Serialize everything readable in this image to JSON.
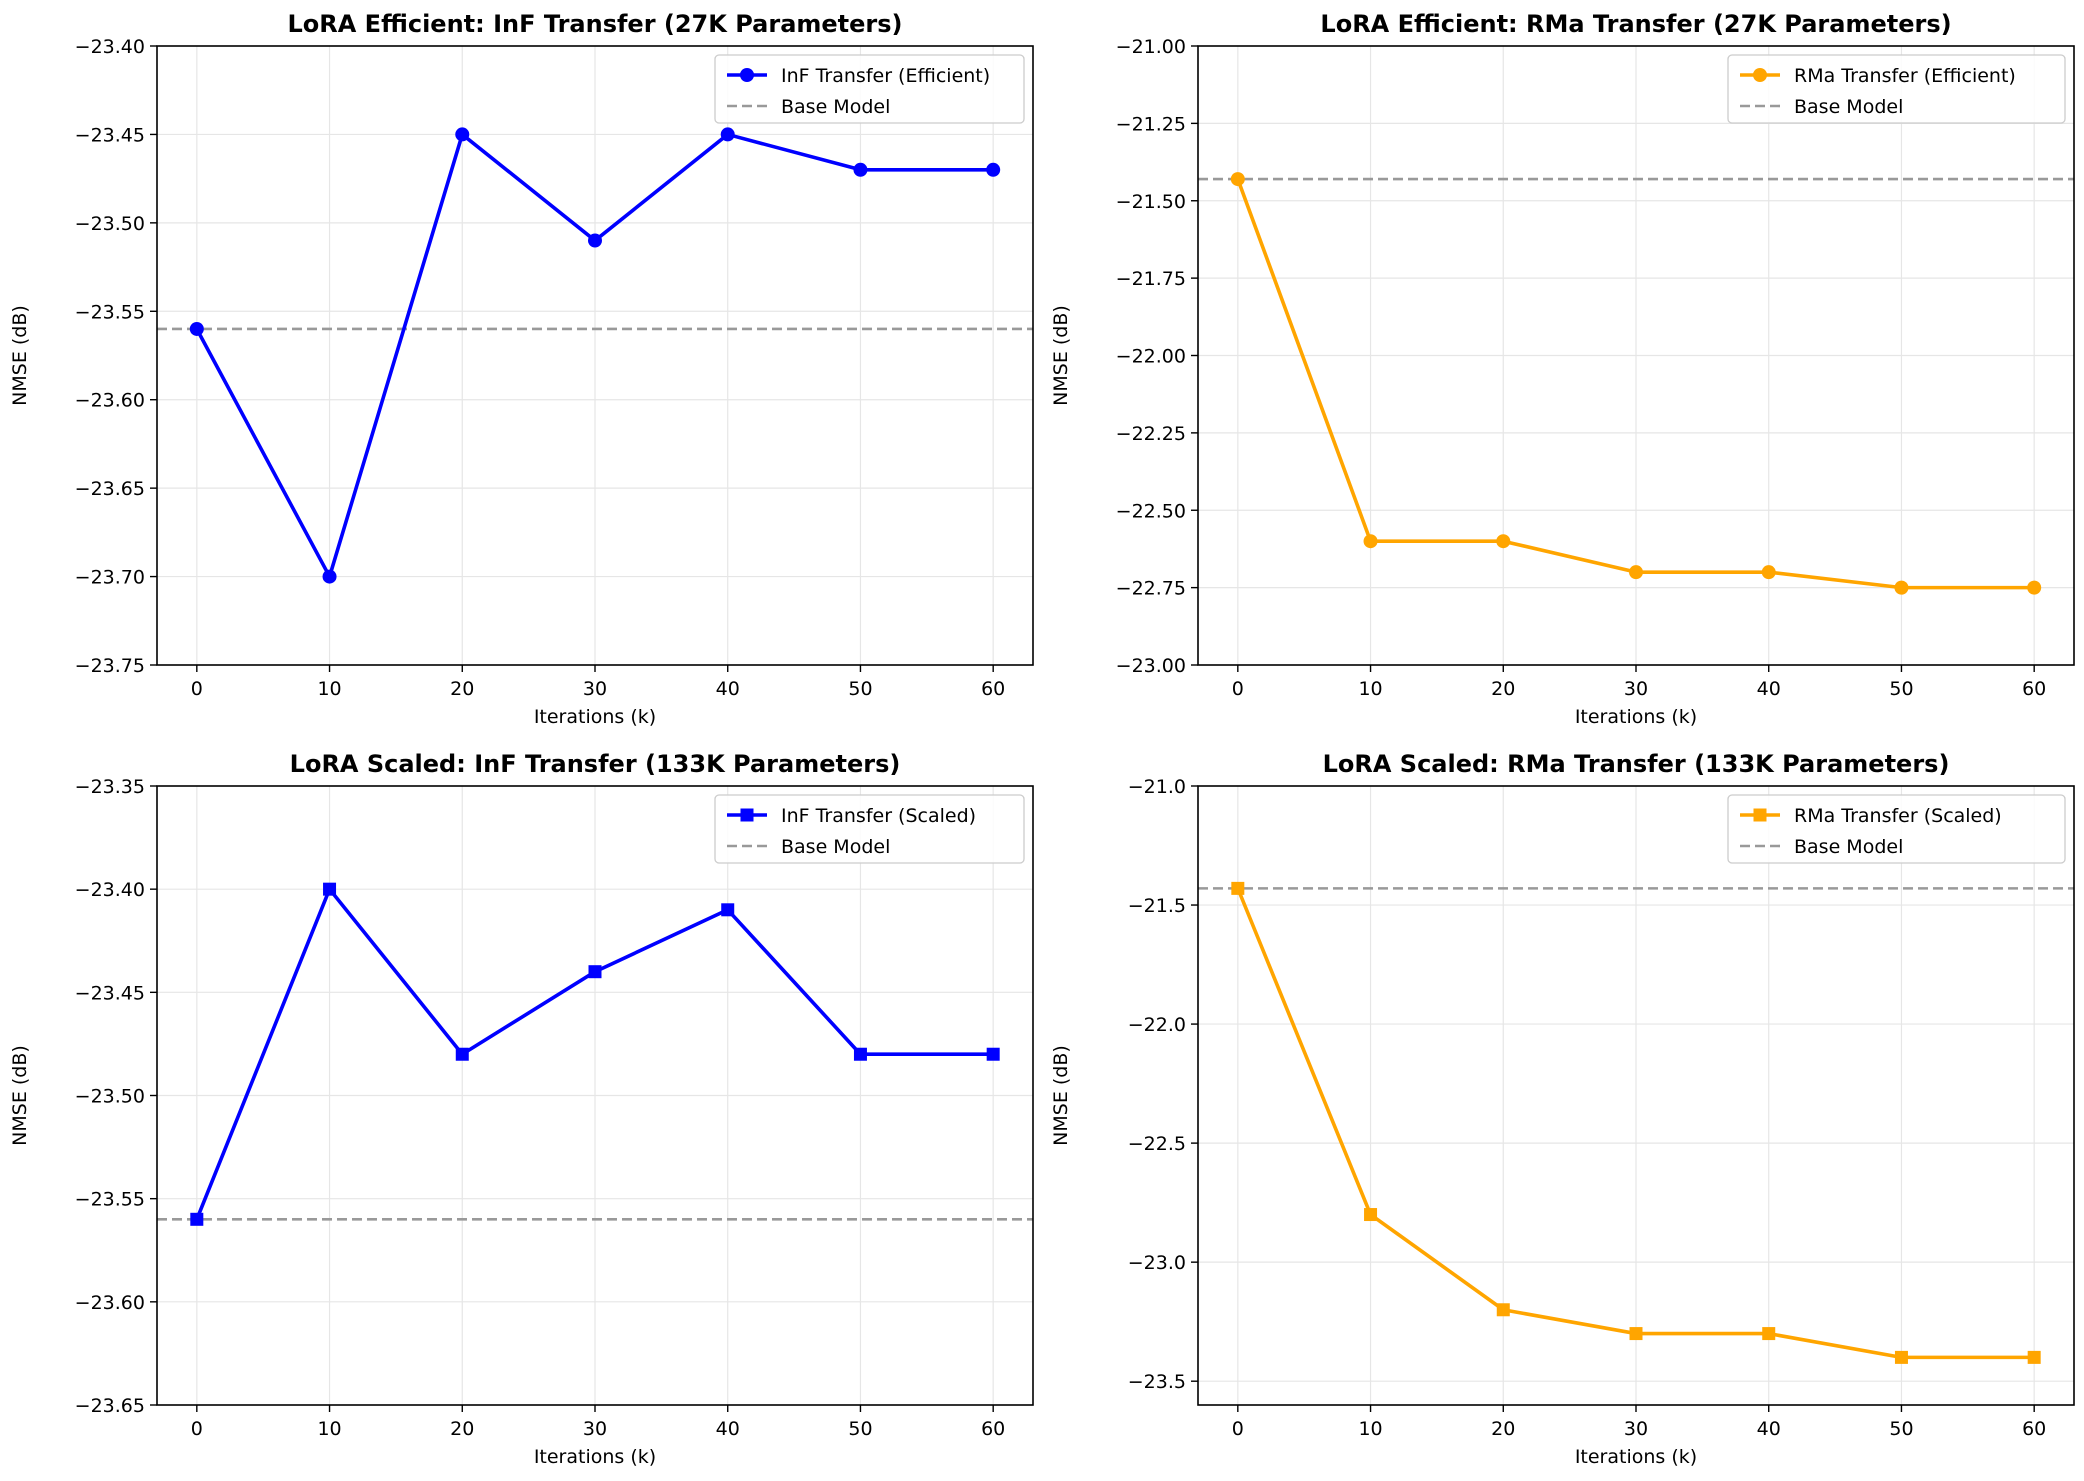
{
  "chart_data": [
    {
      "type": "line",
      "title": "LoRA Efficient: InF Transfer (27K Parameters)",
      "xlabel": "Iterations (k)",
      "ylabel": "NMSE (dB)",
      "x": [
        0,
        10,
        20,
        30,
        40,
        50,
        60
      ],
      "xticks": [
        0,
        10,
        20,
        30,
        40,
        50,
        60
      ],
      "xlim": [
        -3,
        63
      ],
      "ylim": [
        -23.75,
        -23.4
      ],
      "yticks": [
        -23.75,
        -23.7,
        -23.65,
        -23.6,
        -23.55,
        -23.5,
        -23.45,
        -23.4
      ],
      "ytick_labels": [
        "−23.75",
        "−23.70",
        "−23.65",
        "−23.60",
        "−23.55",
        "−23.50",
        "−23.45",
        "−23.40"
      ],
      "grid": true,
      "legend_position": "top-right",
      "series": [
        {
          "name": "InF Transfer (Efficient)",
          "values": [
            -23.56,
            -23.7,
            -23.45,
            -23.51,
            -23.45,
            -23.47,
            -23.47
          ],
          "color": "#0000ff",
          "marker": "circle"
        }
      ],
      "baseline": {
        "name": "Base Model",
        "value": -23.56,
        "color": "#999999",
        "style": "dashed"
      }
    },
    {
      "type": "line",
      "title": "LoRA Efficient: RMa Transfer (27K Parameters)",
      "xlabel": "Iterations (k)",
      "ylabel": "NMSE (dB)",
      "x": [
        0,
        10,
        20,
        30,
        40,
        50,
        60
      ],
      "xticks": [
        0,
        10,
        20,
        30,
        40,
        50,
        60
      ],
      "xlim": [
        -3,
        63
      ],
      "ylim": [
        -23.0,
        -21.0
      ],
      "yticks": [
        -23.0,
        -22.75,
        -22.5,
        -22.25,
        -22.0,
        -21.75,
        -21.5,
        -21.25,
        -21.0
      ],
      "ytick_labels": [
        "−23.00",
        "−22.75",
        "−22.50",
        "−22.25",
        "−22.00",
        "−21.75",
        "−21.50",
        "−21.25",
        "−21.00"
      ],
      "grid": true,
      "legend_position": "top-right",
      "series": [
        {
          "name": "RMa Transfer (Efficient)",
          "values": [
            -21.43,
            -22.6,
            -22.6,
            -22.7,
            -22.7,
            -22.75,
            -22.75
          ],
          "color": "#ffa500",
          "marker": "circle"
        }
      ],
      "baseline": {
        "name": "Base Model",
        "value": -21.43,
        "color": "#999999",
        "style": "dashed"
      }
    },
    {
      "type": "line",
      "title": "LoRA Scaled: InF Transfer (133K Parameters)",
      "xlabel": "Iterations (k)",
      "ylabel": "NMSE (dB)",
      "x": [
        0,
        10,
        20,
        30,
        40,
        50,
        60
      ],
      "xticks": [
        0,
        10,
        20,
        30,
        40,
        50,
        60
      ],
      "xlim": [
        -3,
        63
      ],
      "ylim": [
        -23.65,
        -23.35
      ],
      "yticks": [
        -23.65,
        -23.6,
        -23.55,
        -23.5,
        -23.45,
        -23.4,
        -23.35
      ],
      "ytick_labels": [
        "−23.65",
        "−23.60",
        "−23.55",
        "−23.50",
        "−23.45",
        "−23.40",
        "−23.35"
      ],
      "grid": true,
      "legend_position": "top-right",
      "series": [
        {
          "name": "InF Transfer (Scaled)",
          "values": [
            -23.56,
            -23.4,
            -23.48,
            -23.44,
            -23.41,
            -23.48,
            -23.48
          ],
          "color": "#0000ff",
          "marker": "square"
        }
      ],
      "baseline": {
        "name": "Base Model",
        "value": -23.56,
        "color": "#999999",
        "style": "dashed"
      }
    },
    {
      "type": "line",
      "title": "LoRA Scaled: RMa Transfer (133K Parameters)",
      "xlabel": "Iterations (k)",
      "ylabel": "NMSE (dB)",
      "x": [
        0,
        10,
        20,
        30,
        40,
        50,
        60
      ],
      "xticks": [
        0,
        10,
        20,
        30,
        40,
        50,
        60
      ],
      "xlim": [
        -3,
        63
      ],
      "ylim": [
        -23.6,
        -21.0
      ],
      "yticks": [
        -23.5,
        -23.0,
        -22.5,
        -22.0,
        -21.5,
        -21.0
      ],
      "ytick_labels": [
        "−23.5",
        "−23.0",
        "−22.5",
        "−22.0",
        "−21.5",
        "−21.0"
      ],
      "grid": true,
      "legend_position": "top-right",
      "series": [
        {
          "name": "RMa Transfer (Scaled)",
          "values": [
            -21.43,
            -22.8,
            -23.2,
            -23.3,
            -23.3,
            -23.4,
            -23.4
          ],
          "color": "#ffa500",
          "marker": "square"
        }
      ],
      "baseline": {
        "name": "Base Model",
        "value": -21.43,
        "color": "#999999",
        "style": "dashed"
      }
    }
  ]
}
